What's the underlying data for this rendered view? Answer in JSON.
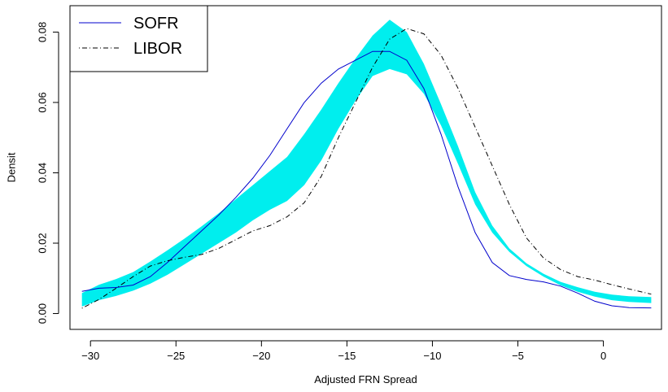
{
  "chart_data": {
    "type": "line",
    "title": "",
    "xlabel": "Adjusted FRN Spread",
    "ylabel": "Densit",
    "xlim": [
      -31.2,
      3.4
    ],
    "ylim": [
      -0.0045,
      0.0875
    ],
    "xticks": [
      -30,
      -25,
      -20,
      -15,
      -10,
      -5,
      0
    ],
    "xtick_labels": [
      "−30",
      "−25",
      "−20",
      "−15",
      "−10",
      "−5",
      "0"
    ],
    "yticks": [
      0.0,
      0.02,
      0.04,
      0.06,
      0.08
    ],
    "ytick_labels": [
      "0.00",
      "0.02",
      "0.04",
      "0.06",
      "0.08"
    ],
    "grid": false,
    "legend_position": "top-left",
    "series": [
      {
        "name": "SOFR",
        "style": "solid",
        "color": "#0000cc",
        "x": [
          -30.5,
          -29.5,
          -28.5,
          -27.5,
          -26.5,
          -25.5,
          -24.5,
          -23.5,
          -22.5,
          -21.5,
          -20.5,
          -19.5,
          -18.5,
          -17.5,
          -16.5,
          -15.5,
          -14.5,
          -13.5,
          -12.5,
          -11.5,
          -10.5,
          -9.5,
          -8.5,
          -7.5,
          -6.5,
          -5.5,
          -4.5,
          -3.5,
          -2.5,
          -1.5,
          -0.5,
          0.5,
          1.5,
          2.8
        ],
        "y": [
          0.0063,
          0.0072,
          0.0074,
          0.0081,
          0.0105,
          0.0145,
          0.019,
          0.0235,
          0.028,
          0.033,
          0.0385,
          0.045,
          0.0525,
          0.06,
          0.0655,
          0.0695,
          0.072,
          0.0745,
          0.0745,
          0.072,
          0.064,
          0.051,
          0.036,
          0.023,
          0.0145,
          0.0108,
          0.0097,
          0.009,
          0.0078,
          0.0058,
          0.0035,
          0.0022,
          0.0017,
          0.0016
        ]
      },
      {
        "name": "LIBOR",
        "style": "dotdash",
        "color": "#000000",
        "x": [
          -30.5,
          -29.5,
          -28.5,
          -27.5,
          -26.5,
          -25.5,
          -24.5,
          -23.5,
          -22.5,
          -21.5,
          -20.5,
          -19.5,
          -18.5,
          -17.5,
          -16.5,
          -15.5,
          -14.5,
          -13.5,
          -12.5,
          -11.5,
          -10.5,
          -9.5,
          -8.5,
          -7.5,
          -6.5,
          -5.5,
          -4.5,
          -3.5,
          -2.5,
          -1.5,
          -0.5,
          0.5,
          1.5,
          2.8
        ],
        "y": [
          0.0015,
          0.004,
          0.0072,
          0.0105,
          0.0135,
          0.015,
          0.016,
          0.0168,
          0.0185,
          0.021,
          0.0235,
          0.025,
          0.0275,
          0.0315,
          0.039,
          0.05,
          0.06,
          0.07,
          0.078,
          0.081,
          0.0795,
          0.0735,
          0.064,
          0.053,
          0.042,
          0.031,
          0.0215,
          0.0158,
          0.0125,
          0.0105,
          0.0095,
          0.0082,
          0.007,
          0.0055
        ]
      }
    ],
    "band": {
      "color": "#00eeee",
      "x": [
        -30.5,
        -29.5,
        -28.5,
        -27.5,
        -26.5,
        -25.5,
        -24.5,
        -23.5,
        -22.5,
        -21.5,
        -20.5,
        -19.5,
        -18.5,
        -17.5,
        -16.5,
        -15.5,
        -14.5,
        -13.5,
        -12.5,
        -11.5,
        -10.5,
        -9.5,
        -8.5,
        -7.5,
        -6.5,
        -5.5,
        -4.5,
        -3.5,
        -2.5,
        -1.5,
        -0.5,
        0.5,
        1.5,
        2.8
      ],
      "lower": [
        0.002,
        0.0038,
        0.005,
        0.0065,
        0.0085,
        0.011,
        0.014,
        0.017,
        0.02,
        0.023,
        0.0265,
        0.0295,
        0.032,
        0.0365,
        0.0435,
        0.0525,
        0.0605,
        0.0675,
        0.0695,
        0.068,
        0.0625,
        0.0535,
        0.0425,
        0.031,
        0.023,
        0.0175,
        0.0135,
        0.0105,
        0.008,
        0.0062,
        0.0048,
        0.0038,
        0.0033,
        0.003
      ],
      "upper": [
        0.0058,
        0.0082,
        0.0098,
        0.0118,
        0.0148,
        0.018,
        0.0213,
        0.0248,
        0.0285,
        0.0325,
        0.0365,
        0.0405,
        0.0445,
        0.051,
        0.058,
        0.0655,
        0.0725,
        0.079,
        0.0835,
        0.08,
        0.071,
        0.0595,
        0.0475,
        0.0345,
        0.025,
        0.0185,
        0.0143,
        0.0113,
        0.009,
        0.0075,
        0.0062,
        0.0054,
        0.0049,
        0.0047
      ]
    }
  }
}
